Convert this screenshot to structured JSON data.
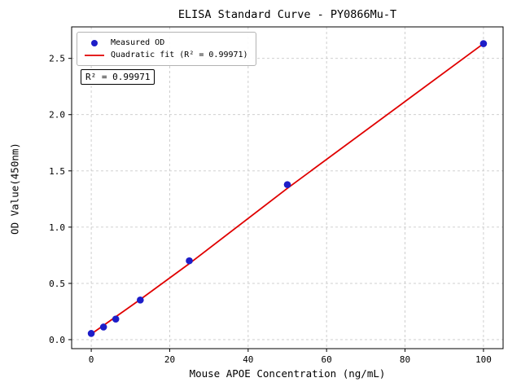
{
  "chart_data": {
    "type": "scatter",
    "title": "ELISA Standard Curve - PY0866Mu-T",
    "xlabel": "Mouse APOE Concentration (ng/mL)",
    "ylabel": "OD Value(450nm)",
    "xlim": [
      -5,
      105
    ],
    "ylim": [
      -0.08,
      2.78
    ],
    "x_ticks": [
      0,
      20,
      40,
      60,
      80,
      100
    ],
    "x_tick_labels": [
      "0",
      "20",
      "40",
      "60",
      "80",
      "100"
    ],
    "y_ticks": [
      0.0,
      0.5,
      1.0,
      1.5,
      2.0,
      2.5
    ],
    "y_tick_labels": [
      "0.0",
      "0.5",
      "1.0",
      "1.5",
      "2.0",
      "2.5"
    ],
    "grid": true,
    "series": [
      {
        "name": "Measured OD",
        "type": "scatter",
        "color": "#1d1dc8",
        "marker_radius": 4.3,
        "x": [
          0,
          3.125,
          6.25,
          12.5,
          25,
          50,
          100
        ],
        "y": [
          0.055,
          0.112,
          0.183,
          0.352,
          0.701,
          1.378,
          2.631
        ]
      },
      {
        "name": "Quadratic fit",
        "type": "line",
        "color": "#e00000",
        "stroke_width": 1.8,
        "x": [
          0,
          3.125,
          6.25,
          12.5,
          25,
          50,
          100
        ],
        "y": [
          0.05,
          0.126,
          0.203,
          0.357,
          0.676,
          1.345,
          2.631
        ]
      }
    ],
    "legend": {
      "position": "upper left",
      "items": [
        {
          "label": "Measured OD",
          "marker": "dot",
          "color": "#1d1dc8"
        },
        {
          "label": "Quadratic fit (R² = 0.99971)",
          "marker": "line",
          "color": "#e00000"
        }
      ]
    },
    "annotation": "R² = 0.99971"
  },
  "colors": {
    "background": "#ffffff",
    "grid": "#c9c9c9",
    "spine": "#000000",
    "scatter": "#1d1dc8",
    "fit_line": "#e00000"
  }
}
